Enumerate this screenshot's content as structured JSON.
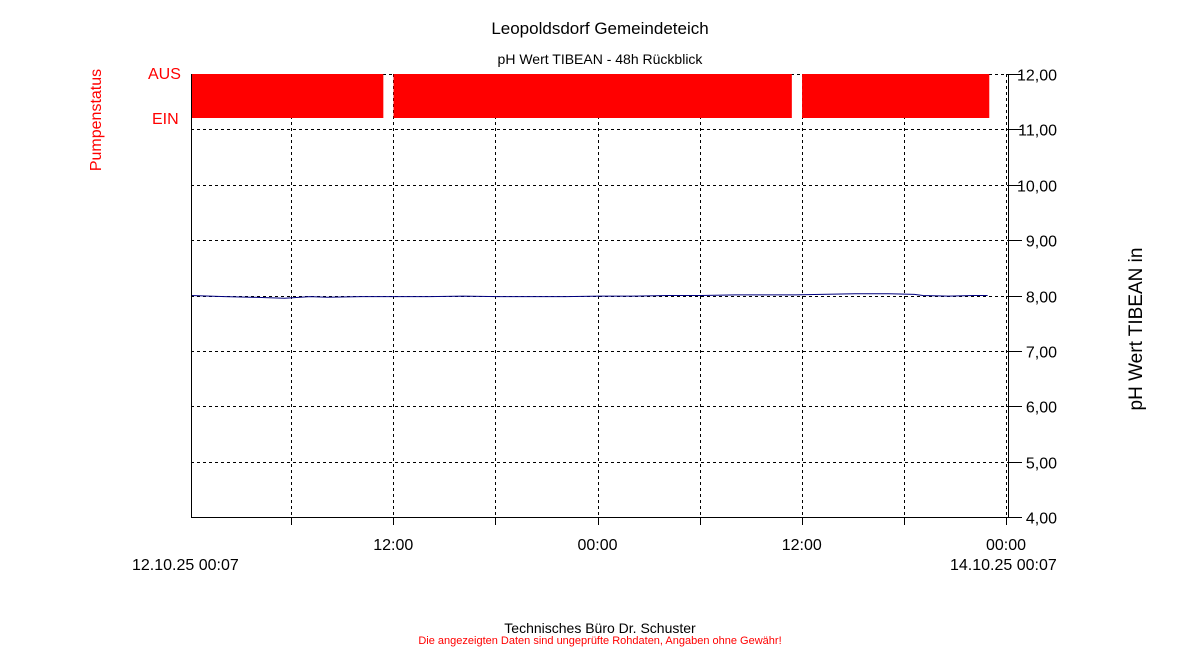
{
  "chart_data": {
    "type": "line",
    "title": "Leopoldsdorf Gemeindeteich",
    "subtitle": "pH Wert TIBEAN - 48h Rückblick",
    "ylabel": "pH Wert TIBEAN in",
    "ylim": [
      4,
      12
    ],
    "y_ticks": [
      "4,00",
      "5,00",
      "6,00",
      "7,00",
      "8,00",
      "9,00",
      "10,00",
      "11,00",
      "12,00"
    ],
    "x_range": [
      "12.10.25 00:07",
      "14.10.25 00:07"
    ],
    "x_range_hours": [
      0,
      48
    ],
    "x_ticks": [
      {
        "label": "12:00",
        "hour": 11.883
      },
      {
        "label": "00:00",
        "hour": 23.883
      },
      {
        "label": "12:00",
        "hour": 35.883
      },
      {
        "label": "00:00",
        "hour": 47.883
      }
    ],
    "x_minor_ticks_hours": [
      5.883,
      17.883,
      29.883,
      41.883
    ],
    "grid": true,
    "series": [
      {
        "color": "#00007f",
        "x_hours": [
          0,
          2,
          3.5,
          5.5,
          7,
          8,
          10,
          12,
          14,
          16,
          18,
          20,
          22,
          24,
          26,
          28,
          30,
          32,
          34,
          35.5,
          37,
          39,
          41,
          42.5,
          43,
          44.5,
          46,
          46.8
        ],
        "values": [
          8.0,
          7.98,
          7.97,
          7.95,
          7.98,
          7.97,
          7.98,
          7.98,
          7.98,
          7.99,
          7.98,
          7.98,
          7.98,
          7.99,
          7.99,
          8.0,
          8.0,
          8.01,
          8.01,
          8.01,
          8.02,
          8.03,
          8.03,
          8.02,
          8.0,
          7.99,
          8.0,
          8.0
        ]
      }
    ],
    "pump_status": {
      "label": "Pumpenstatus",
      "states": {
        "on": "EIN",
        "off": "AUS"
      },
      "color": "#ff0000",
      "segments": [
        {
          "start_hour": 0,
          "end_hour": 11.3,
          "state": "AUS"
        },
        {
          "start_hour": 11.9,
          "end_hour": 35.3,
          "state": "AUS"
        },
        {
          "start_hour": 35.9,
          "end_hour": 46.9,
          "state": "AUS"
        }
      ]
    }
  },
  "footer": {
    "company": "Technisches Büro Dr. Schuster",
    "disclaimer": "Die angezeigten Daten sind ungeprüfte Rohdaten, Angaben ohne Gewähr!"
  }
}
